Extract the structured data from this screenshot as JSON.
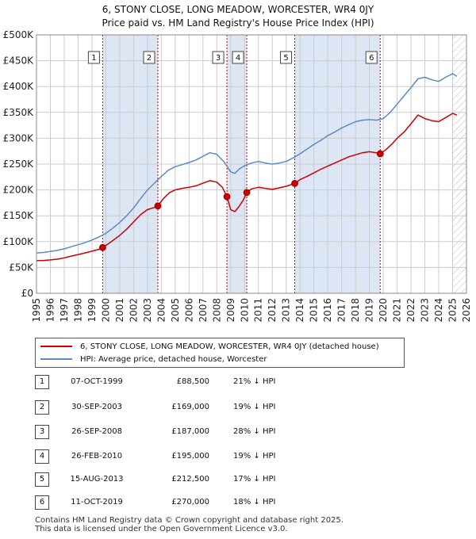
{
  "title_line1": "6, STONY CLOSE, LONG MEADOW, WORCESTER, WR4 0JY",
  "title_line2": "Price paid vs. HM Land Registry's House Price Index (HPI)",
  "colors": {
    "property": "#cc0000",
    "hpi": "#5b8bc4",
    "shade": "#dce6f5",
    "grid": "#cccccc",
    "marker": "#cc0000"
  },
  "chart_data": {
    "type": "line",
    "xlim": [
      1995,
      2026
    ],
    "ylim": [
      0,
      500000
    ],
    "y_ticks": [
      0,
      50000,
      100000,
      150000,
      200000,
      250000,
      300000,
      350000,
      400000,
      450000,
      500000
    ],
    "y_tick_labels": [
      "£0",
      "£50K",
      "£100K",
      "£150K",
      "£200K",
      "£250K",
      "£300K",
      "£350K",
      "£400K",
      "£450K",
      "£500K"
    ],
    "x_ticks": [
      1995,
      1996,
      1997,
      1998,
      1999,
      2000,
      2001,
      2002,
      2003,
      2004,
      2005,
      2006,
      2007,
      2008,
      2009,
      2010,
      2011,
      2012,
      2013,
      2014,
      2015,
      2016,
      2017,
      2018,
      2019,
      2020,
      2021,
      2022,
      2023,
      2024,
      2025,
      2026
    ],
    "grid": true,
    "shaded_periods": [
      [
        1999.77,
        2003.75
      ],
      [
        2008.73,
        2010.16
      ],
      [
        2013.62,
        2019.78
      ]
    ],
    "future_hatch_start": 2025.0,
    "series": [
      {
        "name": "6, STONY CLOSE, LONG MEADOW, WORCESTER, WR4 0JY (detached house)",
        "x": [
          1995.0,
          1995.5,
          1996.0,
          1996.5,
          1997.0,
          1997.5,
          1998.0,
          1998.5,
          1999.0,
          1999.5,
          1999.77,
          2000.2,
          2000.6,
          2001.0,
          2001.5,
          2002.0,
          2002.5,
          2003.0,
          2003.5,
          2003.75,
          2004.2,
          2004.6,
          2005.0,
          2005.5,
          2006.0,
          2006.5,
          2007.0,
          2007.5,
          2008.0,
          2008.4,
          2008.73,
          2009.0,
          2009.3,
          2009.6,
          2009.9,
          2010.16,
          2010.5,
          2011.0,
          2011.5,
          2012.0,
          2012.5,
          2013.0,
          2013.62,
          2014.0,
          2014.5,
          2015.0,
          2015.5,
          2016.0,
          2016.5,
          2017.0,
          2017.5,
          2018.0,
          2018.5,
          2019.0,
          2019.5,
          2019.78,
          2020.2,
          2020.6,
          2021.0,
          2021.5,
          2022.0,
          2022.5,
          2023.0,
          2023.5,
          2024.0,
          2024.5,
          2025.0,
          2025.3
        ],
        "y": [
          63000,
          63500,
          64500,
          66000,
          68500,
          72000,
          75000,
          78000,
          81500,
          85000,
          88500,
          96000,
          104000,
          112000,
          124000,
          138000,
          152000,
          162000,
          166000,
          169000,
          185000,
          195000,
          200000,
          203000,
          205000,
          208000,
          213000,
          218000,
          215000,
          205000,
          187000,
          162000,
          158000,
          168000,
          180000,
          195000,
          202000,
          205000,
          203000,
          201000,
          204000,
          207000,
          212500,
          220000,
          226000,
          233000,
          240000,
          246000,
          252000,
          258000,
          264000,
          268000,
          272000,
          274000,
          272000,
          270000,
          278000,
          288000,
          300000,
          312000,
          328000,
          345000,
          338000,
          334000,
          332000,
          340000,
          348000,
          345000
        ]
      },
      {
        "name": "HPI: Average price, detached house, Worcester",
        "x": [
          1995.0,
          1995.5,
          1996.0,
          1996.5,
          1997.0,
          1997.5,
          1998.0,
          1998.5,
          1999.0,
          1999.5,
          2000.0,
          2000.5,
          2001.0,
          2001.5,
          2002.0,
          2002.5,
          2003.0,
          2003.5,
          2004.0,
          2004.5,
          2005.0,
          2005.5,
          2006.0,
          2006.5,
          2007.0,
          2007.5,
          2008.0,
          2008.5,
          2009.0,
          2009.3,
          2009.6,
          2010.0,
          2010.5,
          2011.0,
          2011.5,
          2012.0,
          2012.5,
          2013.0,
          2013.5,
          2014.0,
          2014.5,
          2015.0,
          2015.5,
          2016.0,
          2016.5,
          2017.0,
          2017.5,
          2018.0,
          2018.5,
          2019.0,
          2019.5,
          2020.0,
          2020.5,
          2021.0,
          2021.5,
          2022.0,
          2022.5,
          2023.0,
          2023.5,
          2024.0,
          2024.5,
          2025.0,
          2025.3
        ],
        "y": [
          78000,
          79000,
          81000,
          83000,
          86000,
          90000,
          94000,
          98000,
          103000,
          109000,
          116000,
          126000,
          137000,
          150000,
          165000,
          183000,
          200000,
          213000,
          226000,
          238000,
          245000,
          249000,
          253000,
          258000,
          265000,
          272000,
          269000,
          255000,
          235000,
          232000,
          240000,
          247000,
          252000,
          255000,
          252000,
          250000,
          252000,
          255000,
          262000,
          270000,
          279000,
          288000,
          296000,
          305000,
          312000,
          320000,
          326000,
          332000,
          335000,
          336000,
          335000,
          338000,
          350000,
          366000,
          382000,
          398000,
          415000,
          418000,
          413000,
          410000,
          418000,
          425000,
          420000
        ]
      }
    ],
    "sale_markers": [
      {
        "label": "1",
        "x": 1999.77,
        "y": 88500
      },
      {
        "label": "2",
        "x": 2003.75,
        "y": 169000
      },
      {
        "label": "3",
        "x": 2008.73,
        "y": 187000
      },
      {
        "label": "4",
        "x": 2010.16,
        "y": 195000
      },
      {
        "label": "5",
        "x": 2013.62,
        "y": 212500
      },
      {
        "label": "6",
        "x": 2019.78,
        "y": 270000
      }
    ]
  },
  "legend": {
    "property_label": "6, STONY CLOSE, LONG MEADOW, WORCESTER, WR4 0JY (detached house)",
    "hpi_label": "HPI: Average price, detached house, Worcester"
  },
  "sales": [
    {
      "num": "1",
      "date": "07-OCT-1999",
      "price": "£88,500",
      "hpi": "21% ↓ HPI"
    },
    {
      "num": "2",
      "date": "30-SEP-2003",
      "price": "£169,000",
      "hpi": "19% ↓ HPI"
    },
    {
      "num": "3",
      "date": "26-SEP-2008",
      "price": "£187,000",
      "hpi": "28% ↓ HPI"
    },
    {
      "num": "4",
      "date": "26-FEB-2010",
      "price": "£195,000",
      "hpi": "19% ↓ HPI"
    },
    {
      "num": "5",
      "date": "15-AUG-2013",
      "price": "£212,500",
      "hpi": "17% ↓ HPI"
    },
    {
      "num": "6",
      "date": "11-OCT-2019",
      "price": "£270,000",
      "hpi": "18% ↓ HPI"
    }
  ],
  "footer_line1": "Contains HM Land Registry data © Crown copyright and database right 2025.",
  "footer_line2": "This data is licensed under the Open Government Licence v3.0."
}
